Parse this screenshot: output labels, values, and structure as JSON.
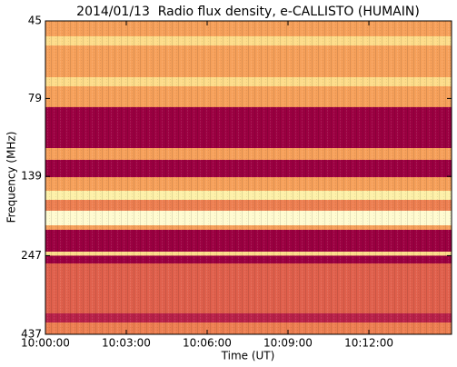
{
  "chart_data": {
    "type": "heatmap",
    "title": "2014/01/13  Radio flux density, e-CALLISTO (HUMAIN)",
    "xlabel": "Time (UT)",
    "ylabel": "Frequency (MHz)",
    "xlim": [
      "10:00:00",
      "10:15:04"
    ],
    "xticks": [
      "10:00:00",
      "10:03:00",
      "10:06:00",
      "10:09:00",
      "10:12:00"
    ],
    "ylim": [
      45,
      437
    ],
    "yticks": [
      45,
      79,
      139,
      247,
      437
    ],
    "log_y": true,
    "invert_y": true,
    "y_bins": [
      45,
      50.3,
      53.8,
      67.7,
      72.3,
      84.1,
      113.2,
      123.3,
      139.8,
      154.3,
      164.8,
      178.3,
      198.2,
      204.8,
      239.9,
      247,
      261.4,
      375.5,
      401.1,
      437
    ],
    "values": [
      5,
      7,
      5,
      7,
      5,
      0,
      5,
      0,
      5,
      8,
      4,
      9,
      5,
      0,
      7,
      0,
      3,
      1,
      4
    ],
    "zlim": [
      0,
      10
    ],
    "colorscale": [
      "#9b0041",
      "#b8214a",
      "#cf3f4c",
      "#e0604c",
      "#ed7f51",
      "#f6a05a",
      "#fbc06e",
      "#fddc8a",
      "#fdf0a8",
      "#fffbd0",
      "#ffffe5"
    ]
  }
}
